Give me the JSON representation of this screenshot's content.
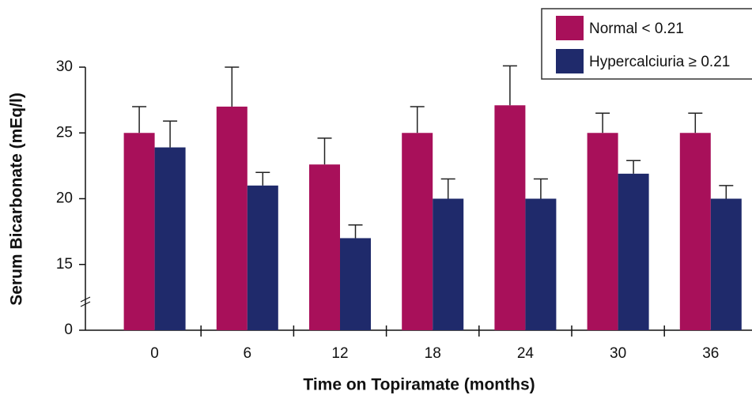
{
  "chart_data": {
    "type": "bar",
    "x_label": "Time on Topiramate (months)",
    "y_label": "Serum Bicarbonate (mEq/l)",
    "categories": [
      "0",
      "6",
      "12",
      "18",
      "24",
      "30",
      "36"
    ],
    "series": [
      {
        "name": "Normal < 0.21",
        "color": "#a8105a",
        "values": [
          25,
          27,
          22.6,
          25,
          27.1,
          25,
          25
        ],
        "errors": [
          2,
          3,
          2,
          2,
          3,
          1.5,
          1.5
        ]
      },
      {
        "name": "Hypercalciuria ≥ 0.21",
        "color": "#1f2a6b",
        "values": [
          23.9,
          21,
          17,
          20,
          20,
          21.9,
          20
        ],
        "errors": [
          2,
          1,
          1,
          1.5,
          1.5,
          1,
          1
        ]
      }
    ],
    "ylim": [
      0,
      30
    ],
    "yticks": [
      0,
      15,
      20,
      25,
      30
    ],
    "y_break": true,
    "legend": "top-right"
  }
}
